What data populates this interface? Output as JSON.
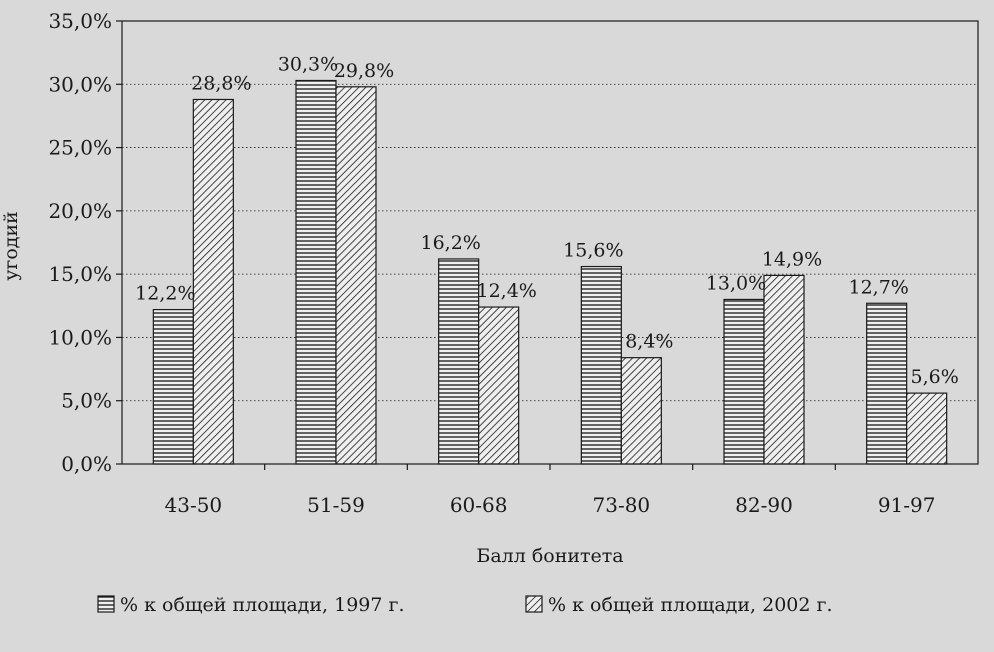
{
  "chart_data": {
    "type": "bar",
    "title": "",
    "xlabel": "Балл бонитета",
    "ylabel": "угодий",
    "categories": [
      "43-50",
      "51-59",
      "60-68",
      "73-80",
      "82-90",
      "91-97"
    ],
    "series": [
      {
        "name": "% к общей площади, 1997 г.",
        "values": [
          12.2,
          30.3,
          16.2,
          15.6,
          13.0,
          12.7
        ],
        "labels": [
          "12,2%",
          "30,3%",
          "16,2%",
          "15,6%",
          "13,0%",
          "12,7%"
        ],
        "pattern": "horizontal-stripes"
      },
      {
        "name": "% к общей площади, 2002 г.",
        "values": [
          28.8,
          29.8,
          12.4,
          8.4,
          14.9,
          5.6
        ],
        "labels": [
          "28,8%",
          "29,8%",
          "12,4%",
          "8,4%",
          "14,9%",
          "5,6%"
        ],
        "pattern": "diagonal-hatch"
      }
    ],
    "ylim": [
      0,
      35
    ],
    "yticks": [
      0,
      5,
      10,
      15,
      20,
      25,
      30,
      35
    ],
    "ytick_labels": [
      "0,0%",
      "5,0%",
      "10,0%",
      "15,0%",
      "20,0%",
      "25,0%",
      "30,0%",
      "35,0%"
    ],
    "grid": "horizontal-dotted",
    "legend_position": "bottom"
  },
  "colors": {
    "background": "#d9d9d9",
    "ink": "#1a1a1a",
    "bar_fill": "#efefef"
  }
}
